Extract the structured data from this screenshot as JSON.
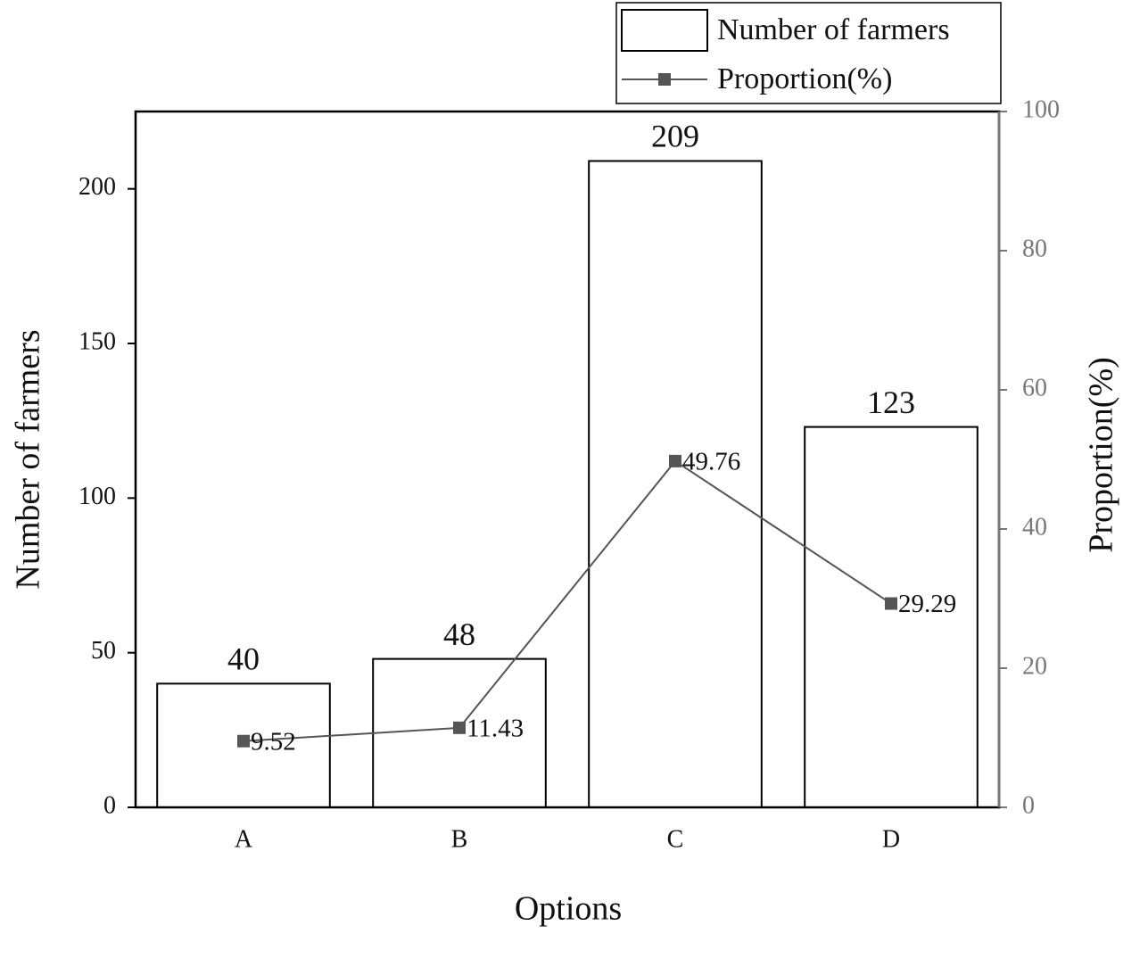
{
  "chart_data": {
    "type": "bar_line",
    "categories": [
      "A",
      "B",
      "C",
      "D"
    ],
    "x_label": "Options",
    "y_label": "Number of farmers",
    "y2_label": "Proportion(%)",
    "series": [
      {
        "name": "Number of farmers",
        "type": "bar",
        "color": "#ffffff",
        "values": [
          40,
          48,
          209,
          123
        ]
      },
      {
        "name": "Proportion(%)",
        "type": "line",
        "axis": "y2",
        "color": "#555555",
        "values": [
          9.52,
          11.43,
          49.76,
          29.29
        ]
      }
    ],
    "ylim": [
      0,
      225
    ],
    "yticks": [
      0,
      50,
      100,
      150,
      200
    ],
    "y2lim": [
      0,
      100
    ],
    "y2ticks": [
      0,
      20,
      40,
      60,
      80,
      100
    ],
    "legend": "top right"
  }
}
